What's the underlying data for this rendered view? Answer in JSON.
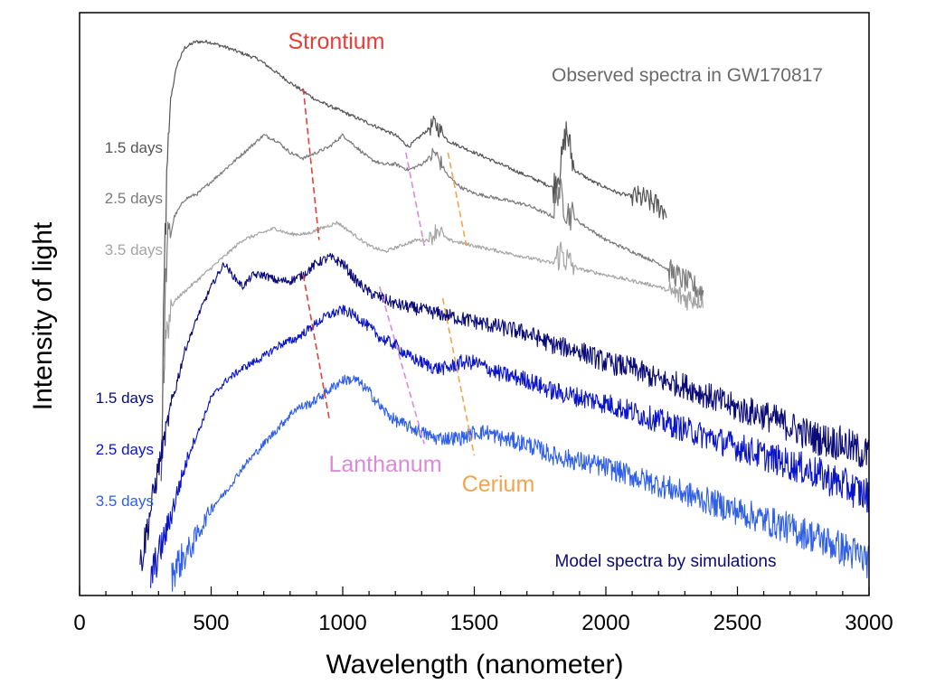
{
  "colors": {
    "observed_1_5": "#555555",
    "observed_2_5": "#7a7a7a",
    "observed_3_5": "#a5a5a5",
    "model_1_5": "#0a0a78",
    "model_2_5": "#0a14c8",
    "model_3_5": "#2f5fe6",
    "strontium": "#e2403a",
    "lanthanum": "#dd88dd",
    "cerium": "#efa64f"
  },
  "chart_data": {
    "type": "line",
    "xlabel": "Wavelength (nanometer)",
    "ylabel": "Intensity of light",
    "xlim": [
      0,
      3000
    ],
    "ylim": [
      0,
      1
    ],
    "x_ticks": [
      "0",
      "500",
      "1000",
      "1500",
      "2000",
      "2500",
      "3000"
    ],
    "y_ticks_labeled": false,
    "grid": false,
    "legend": "none",
    "series": [
      {
        "group": "observed",
        "label": "1.5 days",
        "color_key": "observed_1_5",
        "x": [
          310,
          325,
          345,
          370,
          400,
          440,
          490,
          560,
          620,
          680,
          740,
          800,
          900,
          1000,
          1100,
          1200,
          1250,
          1300,
          1350,
          1400,
          1500,
          1600,
          1700,
          1800,
          1830,
          1850,
          1880,
          1950,
          2050,
          2150,
          2230
        ],
        "y": [
          0.18,
          0.62,
          0.85,
          0.91,
          0.94,
          0.95,
          0.95,
          0.94,
          0.93,
          0.92,
          0.9,
          0.88,
          0.85,
          0.83,
          0.81,
          0.79,
          0.77,
          0.79,
          0.81,
          0.78,
          0.76,
          0.74,
          0.72,
          0.7,
          0.74,
          0.8,
          0.73,
          0.71,
          0.69,
          0.68,
          0.66
        ]
      },
      {
        "group": "observed",
        "label": "2.5 days",
        "color_key": "observed_2_5",
        "x": [
          315,
          330,
          360,
          400,
          450,
          500,
          550,
          600,
          650,
          700,
          750,
          800,
          850,
          900,
          950,
          1000,
          1050,
          1100,
          1150,
          1200,
          1250,
          1300,
          1350,
          1400,
          1450,
          1500,
          1600,
          1700,
          1800,
          1820,
          1850,
          1900,
          2000,
          2100,
          2200,
          2300,
          2370
        ],
        "y": [
          0.3,
          0.58,
          0.65,
          0.68,
          0.69,
          0.71,
          0.73,
          0.75,
          0.77,
          0.79,
          0.78,
          0.76,
          0.75,
          0.76,
          0.77,
          0.79,
          0.77,
          0.75,
          0.74,
          0.74,
          0.73,
          0.74,
          0.76,
          0.72,
          0.7,
          0.69,
          0.68,
          0.67,
          0.65,
          0.7,
          0.66,
          0.64,
          0.61,
          0.59,
          0.57,
          0.54,
          0.52
        ]
      },
      {
        "group": "observed",
        "label": "3.5 days",
        "color_key": "observed_3_5",
        "x": [
          320,
          340,
          370,
          420,
          470,
          520,
          570,
          620,
          680,
          740,
          800,
          860,
          920,
          980,
          1040,
          1100,
          1160,
          1220,
          1280,
          1330,
          1360,
          1400,
          1500,
          1600,
          1700,
          1800,
          1830,
          1860,
          1900,
          2000,
          2100,
          2200,
          2250,
          2300,
          2370
        ],
        "y": [
          0.42,
          0.49,
          0.51,
          0.53,
          0.55,
          0.57,
          0.59,
          0.61,
          0.62,
          0.63,
          0.62,
          0.62,
          0.63,
          0.64,
          0.62,
          0.6,
          0.59,
          0.6,
          0.61,
          0.61,
          0.63,
          0.61,
          0.6,
          0.59,
          0.58,
          0.57,
          0.59,
          0.57,
          0.56,
          0.55,
          0.54,
          0.53,
          0.52,
          0.51,
          0.51
        ]
      },
      {
        "group": "model",
        "label": "1.5 days",
        "color_key": "model_1_5",
        "x": [
          230,
          300,
          350,
          400,
          450,
          500,
          550,
          580,
          620,
          660,
          700,
          750,
          800,
          850,
          900,
          950,
          1000,
          1050,
          1100,
          1150,
          1200,
          1300,
          1400,
          1500,
          1600,
          1700,
          1800,
          1900,
          2000,
          2100,
          2200,
          2300,
          2400,
          2500,
          2600,
          2700,
          2800,
          2900,
          3000
        ],
        "y": [
          0.05,
          0.22,
          0.33,
          0.42,
          0.48,
          0.53,
          0.57,
          0.55,
          0.53,
          0.55,
          0.55,
          0.54,
          0.54,
          0.55,
          0.57,
          0.58,
          0.57,
          0.54,
          0.52,
          0.51,
          0.5,
          0.49,
          0.48,
          0.47,
          0.46,
          0.45,
          0.43,
          0.42,
          0.4,
          0.39,
          0.37,
          0.36,
          0.34,
          0.32,
          0.31,
          0.29,
          0.27,
          0.26,
          0.24
        ]
      },
      {
        "group": "model",
        "label": "2.5 days",
        "color_key": "model_2_5",
        "x": [
          270,
          330,
          380,
          420,
          460,
          500,
          560,
          620,
          700,
          760,
          820,
          880,
          940,
          1000,
          1050,
          1100,
          1150,
          1200,
          1250,
          1300,
          1350,
          1400,
          1450,
          1500,
          1550,
          1600,
          1700,
          1800,
          1900,
          2000,
          2200,
          2400,
          2600,
          2800,
          3000
        ],
        "y": [
          0.03,
          0.11,
          0.19,
          0.25,
          0.29,
          0.34,
          0.37,
          0.39,
          0.41,
          0.43,
          0.44,
          0.46,
          0.48,
          0.49,
          0.48,
          0.46,
          0.44,
          0.43,
          0.41,
          0.4,
          0.39,
          0.39,
          0.4,
          0.4,
          0.39,
          0.38,
          0.37,
          0.35,
          0.34,
          0.33,
          0.3,
          0.27,
          0.24,
          0.21,
          0.17
        ]
      },
      {
        "group": "model",
        "label": "3.5 days",
        "color_key": "model_3_5",
        "x": [
          350,
          420,
          500,
          560,
          620,
          700,
          760,
          820,
          880,
          940,
          1000,
          1050,
          1100,
          1150,
          1200,
          1250,
          1300,
          1350,
          1400,
          1450,
          1500,
          1550,
          1600,
          1700,
          1800,
          1900,
          2000,
          2200,
          2400,
          2600,
          2800,
          3000
        ],
        "y": [
          0.04,
          0.08,
          0.15,
          0.18,
          0.22,
          0.26,
          0.29,
          0.32,
          0.33,
          0.35,
          0.37,
          0.37,
          0.35,
          0.32,
          0.3,
          0.29,
          0.28,
          0.27,
          0.27,
          0.27,
          0.28,
          0.28,
          0.27,
          0.26,
          0.24,
          0.23,
          0.22,
          0.19,
          0.16,
          0.13,
          0.1,
          0.06
        ]
      }
    ],
    "element_lines": [
      {
        "name": "Strontium",
        "color_key": "strontium",
        "segments": [
          {
            "x": [
              850,
              910
            ],
            "y": [
              0.87,
              0.61
            ]
          },
          {
            "x": [
              850,
              950
            ],
            "y": [
              0.55,
              0.3
            ]
          }
        ]
      },
      {
        "name": "Lanthanum",
        "color_key": "lanthanum",
        "segments": [
          {
            "x": [
              1240,
              1310
            ],
            "y": [
              0.76,
              0.6
            ]
          },
          {
            "x": [
              1140,
              1310
            ],
            "y": [
              0.53,
              0.26
            ]
          }
        ]
      },
      {
        "name": "Cerium",
        "color_key": "cerium",
        "segments": [
          {
            "x": [
              1400,
              1470
            ],
            "y": [
              0.76,
              0.6
            ]
          },
          {
            "x": [
              1380,
              1500
            ],
            "y": [
              0.51,
              0.24
            ]
          }
        ]
      }
    ],
    "annotations": {
      "strontium": "Strontium",
      "lanthanum": "Lanthanum",
      "cerium": "Cerium",
      "observed": "Observed spectra in GW170817",
      "model": "Model spectra by simulations"
    },
    "day_labels": {
      "observed": [
        "1.5 days",
        "2.5 days",
        "3.5 days"
      ],
      "model": [
        "1.5 days",
        "2.5 days",
        "3.5 days"
      ]
    }
  }
}
